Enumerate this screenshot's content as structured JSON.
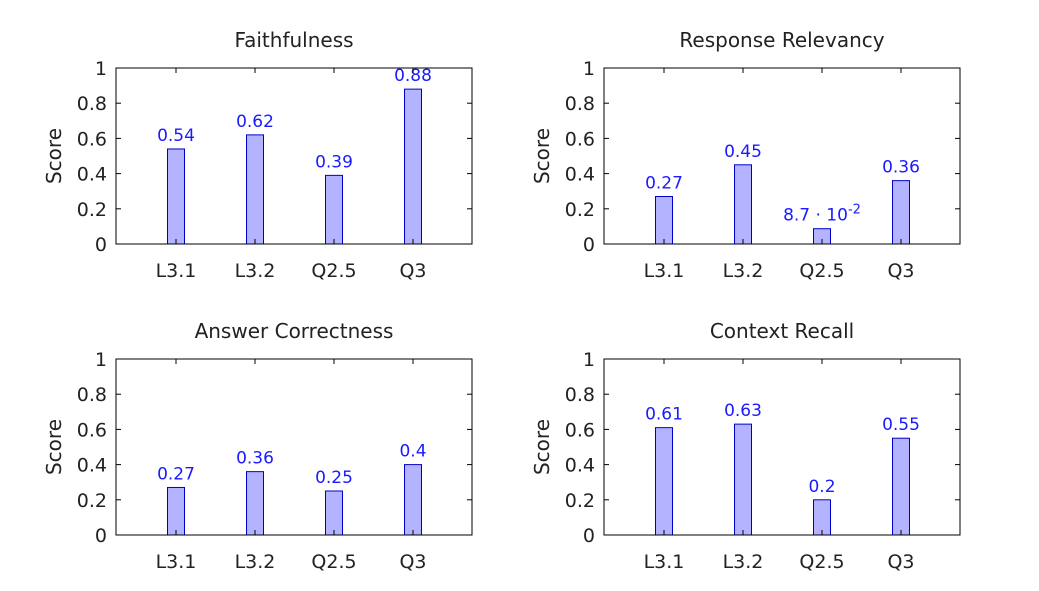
{
  "colors": {
    "bar_fill": "#b3b3ff",
    "bar_stroke": "#0000cc",
    "label": "#1a1aff"
  },
  "chart_data": [
    {
      "type": "bar",
      "title": "Faithfulness",
      "ylabel": "Score",
      "categories": [
        "L3.1",
        "L3.2",
        "Q2.5",
        "Q3"
      ],
      "values": [
        0.54,
        0.62,
        0.39,
        0.88
      ],
      "value_labels": [
        "0.54",
        "0.62",
        "0.39",
        "0.88"
      ],
      "ylim": [
        0,
        1
      ],
      "yticks": [
        "0",
        "0.2",
        "0.4",
        "0.6",
        "0.8",
        "1"
      ]
    },
    {
      "type": "bar",
      "title": "Response Relevancy",
      "ylabel": "Score",
      "categories": [
        "L3.1",
        "L3.2",
        "Q2.5",
        "Q3"
      ],
      "values": [
        0.27,
        0.45,
        0.087,
        0.36
      ],
      "value_labels": [
        "0.27",
        "0.45",
        "8.7 · 10^-2",
        "0.36"
      ],
      "ylim": [
        0,
        1
      ],
      "yticks": [
        "0",
        "0.2",
        "0.4",
        "0.6",
        "0.8",
        "1"
      ]
    },
    {
      "type": "bar",
      "title": "Answer Correctness",
      "ylabel": "Score",
      "categories": [
        "L3.1",
        "L3.2",
        "Q2.5",
        "Q3"
      ],
      "values": [
        0.27,
        0.36,
        0.25,
        0.4
      ],
      "value_labels": [
        "0.27",
        "0.36",
        "0.25",
        "0.4"
      ],
      "ylim": [
        0,
        1
      ],
      "yticks": [
        "0",
        "0.2",
        "0.4",
        "0.6",
        "0.8",
        "1"
      ]
    },
    {
      "type": "bar",
      "title": "Context Recall",
      "ylabel": "Score",
      "categories": [
        "L3.1",
        "L3.2",
        "Q2.5",
        "Q3"
      ],
      "values": [
        0.61,
        0.63,
        0.2,
        0.55
      ],
      "value_labels": [
        "0.61",
        "0.63",
        "0.2",
        "0.55"
      ],
      "ylim": [
        0,
        1
      ],
      "yticks": [
        "0",
        "0.2",
        "0.4",
        "0.6",
        "0.8",
        "1"
      ]
    }
  ]
}
